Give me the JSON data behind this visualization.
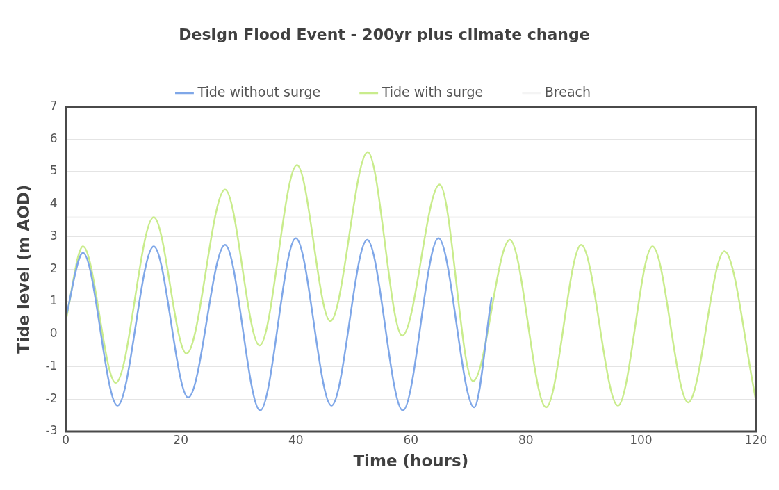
{
  "chart_data": {
    "type": "line",
    "title": "Design Flood Event - 200yr plus climate change",
    "xlabel": "Time (hours)",
    "ylabel": "Tide level (m AOD)",
    "xlim": [
      0,
      120
    ],
    "xticks": [
      0,
      20,
      40,
      60,
      80,
      100,
      120
    ],
    "ylim": [
      -3,
      7
    ],
    "yticks": [
      -3,
      -2,
      -1,
      0,
      1,
      2,
      3,
      4,
      5,
      6,
      7
    ],
    "grid": "y",
    "legend": "top",
    "marker": "none",
    "line_style": "solid",
    "series": [
      {
        "name": "Tide without surge",
        "color": "#7fa7e8",
        "x": [
          0,
          3,
          9,
          15.3,
          21.3,
          27.7,
          33.8,
          40,
          46.2,
          52.4,
          58.6,
          64.8,
          71,
          74
        ],
        "values": [
          0.5,
          2.5,
          -2.2,
          2.7,
          -1.95,
          2.75,
          -2.35,
          2.95,
          -2.2,
          2.9,
          -2.35,
          2.95,
          -2.25,
          1.1
        ]
      },
      {
        "name": "Tide with surge",
        "color": "#c9ec8c",
        "x": [
          0,
          3,
          8.7,
          15.3,
          21,
          27.7,
          33.7,
          40.2,
          46,
          52.5,
          58.5,
          65,
          70.8,
          77.2,
          83.5,
          89.6,
          96,
          102,
          108.2,
          114.5,
          120
        ],
        "values": [
          0.4,
          2.7,
          -1.5,
          3.6,
          -0.6,
          4.45,
          -0.35,
          5.2,
          0.4,
          5.6,
          -0.05,
          4.6,
          -1.45,
          2.9,
          -2.25,
          2.75,
          -2.2,
          2.7,
          -2.1,
          2.55,
          -2.05
        ]
      },
      {
        "name": "Breach",
        "color": "#f4f4f4",
        "x": [
          0,
          120
        ],
        "values": [
          3.6,
          3.6
        ]
      }
    ]
  }
}
